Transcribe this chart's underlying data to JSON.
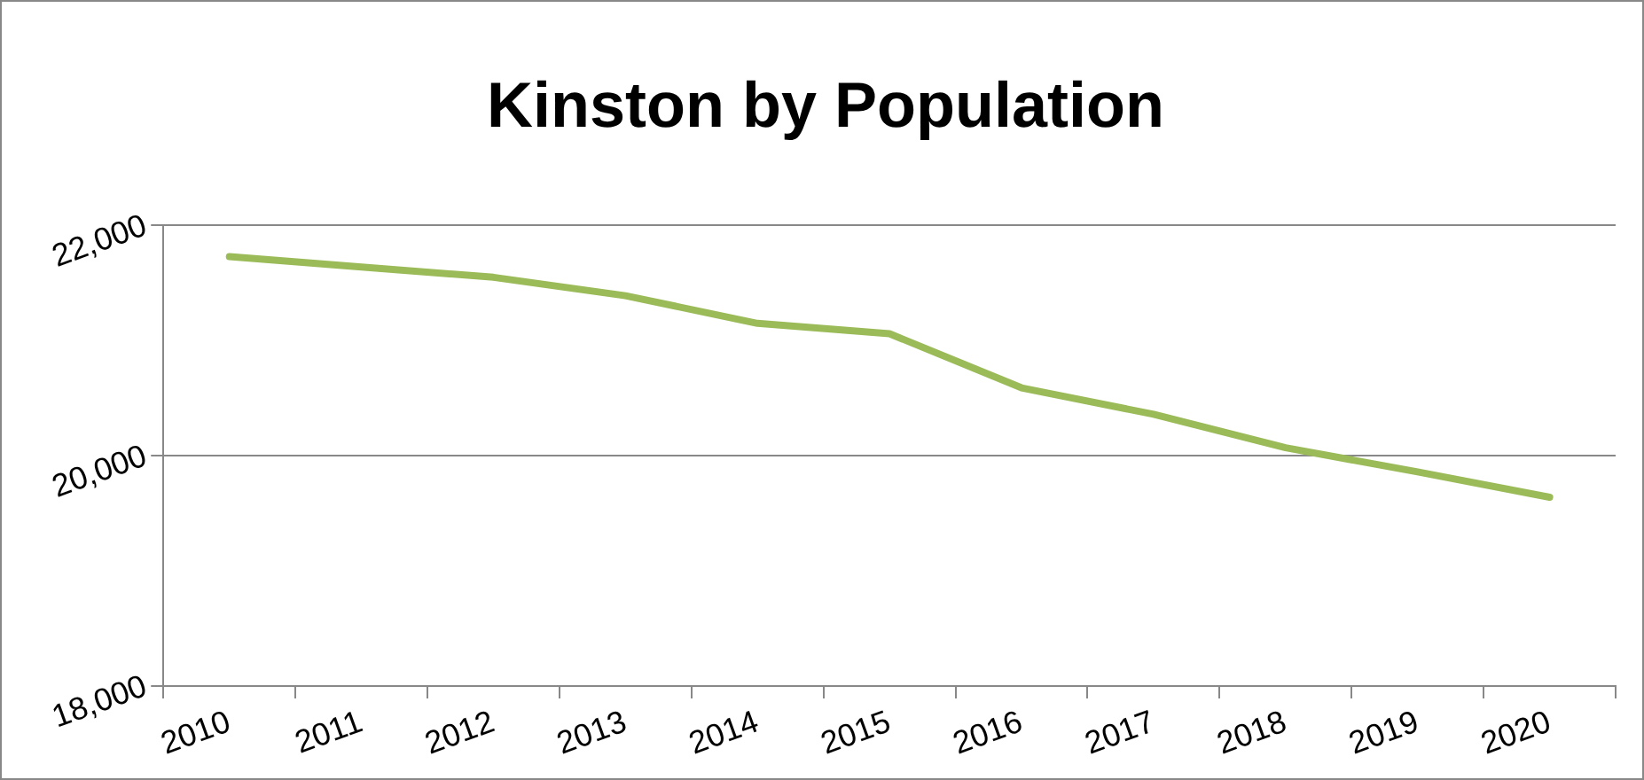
{
  "chart_data": {
    "type": "line",
    "title": "Kinston by Population",
    "categories": [
      "2010",
      "2011",
      "2012",
      "2013",
      "2014",
      "2015",
      "2016",
      "2017",
      "2018",
      "2019",
      "2020"
    ],
    "series": [
      {
        "color": "#9bbb59",
        "values": [
          21730,
          21640,
          21550,
          21390,
          21150,
          21060,
          20590,
          20360,
          20070,
          19860,
          19640
        ]
      }
    ],
    "ylim": [
      18000,
      22000
    ],
    "yticks": [
      {
        "value": 18000,
        "label": "18,000"
      },
      {
        "value": 20000,
        "label": "20,000"
      },
      {
        "value": 22000,
        "label": "22,000"
      }
    ],
    "grid": "y",
    "legend": false,
    "marker": "none",
    "line_style": "solid"
  }
}
